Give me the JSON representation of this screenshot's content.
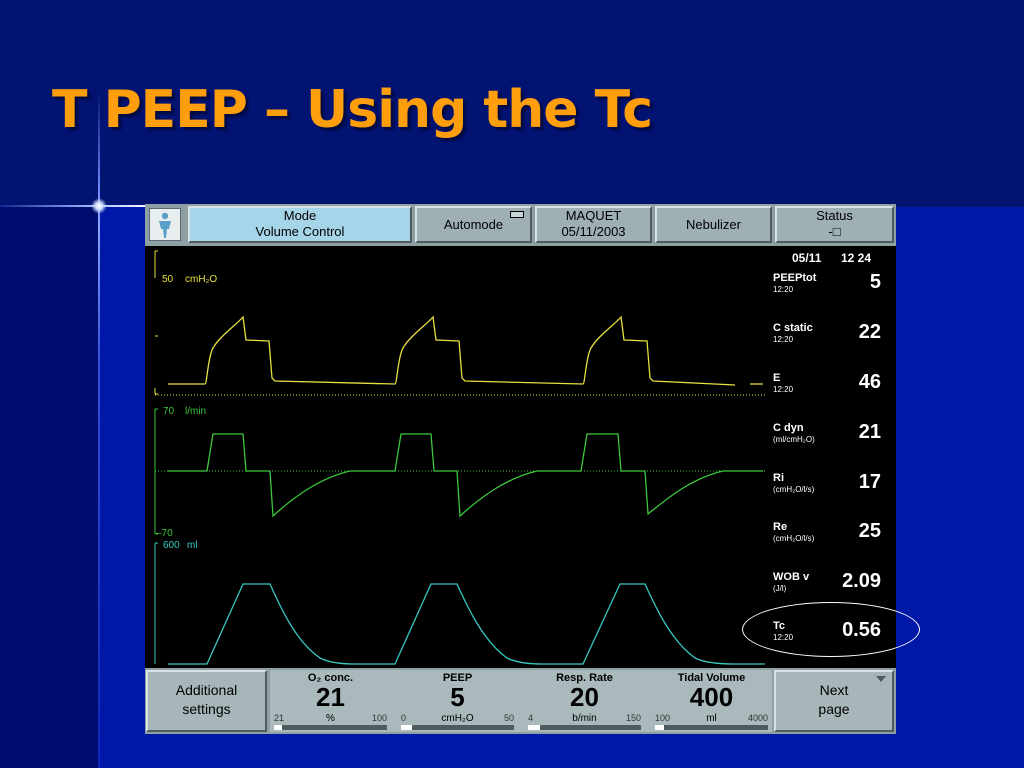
{
  "slide": {
    "title": "T PEEP – Using the Tc"
  },
  "topbar": {
    "mode_label": "Mode",
    "mode_value": "Volume Control",
    "automode": "Automode",
    "brand": "MAQUET",
    "date": "05/11/2003",
    "nebulizer": "Nebulizer",
    "status": "Status",
    "status_symbol": "-□"
  },
  "plots": {
    "pressure": {
      "scale_max": "50",
      "unit": "cmH₂O",
      "color": "#e8e040"
    },
    "flow": {
      "scale_max": "70",
      "scale_min": "–70",
      "unit": "l/min",
      "color": "#3cc83c"
    },
    "volume": {
      "scale_max": "600",
      "unit": "ml",
      "color": "#38c8c0"
    }
  },
  "side": {
    "date": "05/11",
    "time": "12 24",
    "values": [
      {
        "label": "PEEPtot",
        "sub": "12:20",
        "value": "5"
      },
      {
        "label": "C static",
        "sub": "12:20",
        "value": "22"
      },
      {
        "label": "E",
        "sub": "12:20",
        "value": "46"
      },
      {
        "label": "C dyn",
        "sub": "(ml/cmH₂O)",
        "value": "21"
      },
      {
        "label": "Ri",
        "sub": "(cmH₂O/l/s)",
        "value": "17"
      },
      {
        "label": "Re",
        "sub": "(cmH₂O/l/s)",
        "value": "25"
      },
      {
        "label": "WOB v",
        "sub": "(J/l)",
        "value": "2.09"
      },
      {
        "label": "Tc",
        "sub": "12:20",
        "value": "0.56"
      }
    ]
  },
  "bottom": {
    "additional_l1": "Additional",
    "additional_l2": "settings",
    "next_l1": "Next",
    "next_l2": "page",
    "settings": [
      {
        "name": "O₂ conc.",
        "value": "21",
        "unit": "%",
        "min": "21",
        "max": "100",
        "fraction": 0.0
      },
      {
        "name": "PEEP",
        "value": "5",
        "unit": "cmH₂O",
        "min": "0",
        "max": "50",
        "fraction": 0.1
      },
      {
        "name": "Resp. Rate",
        "value": "20",
        "unit": "b/min",
        "min": "4",
        "max": "150",
        "fraction": 0.11
      },
      {
        "name": "Tidal Volume",
        "value": "400",
        "unit": "ml",
        "min": "100",
        "max": "4000",
        "fraction": 0.08
      }
    ]
  }
}
